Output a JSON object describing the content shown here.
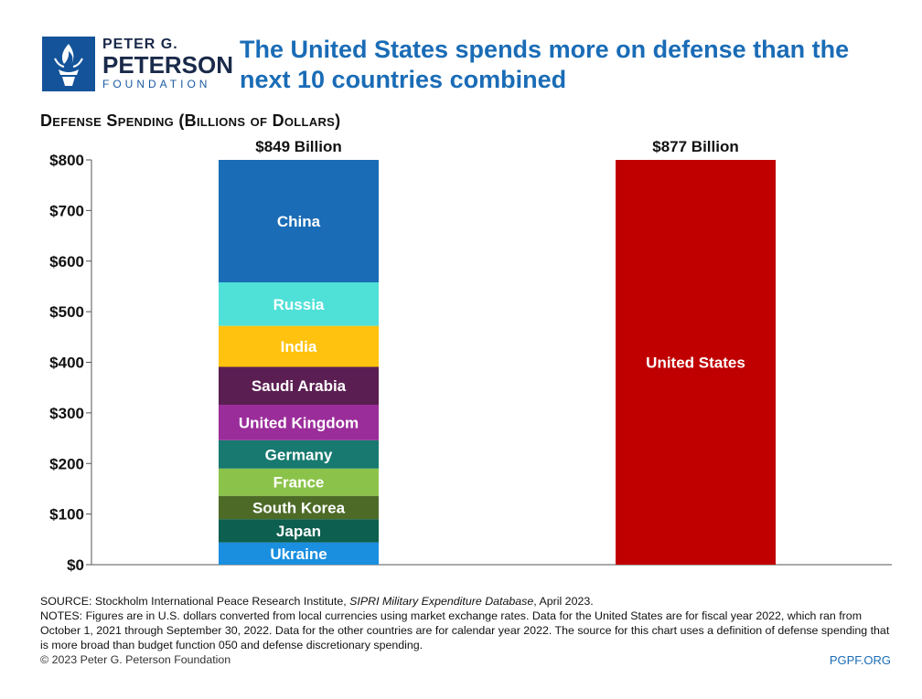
{
  "logo": {
    "line1": "PETER G.",
    "line2": "PETERSON",
    "line3": "FOUNDATION",
    "color": "#14539a"
  },
  "title": "The United States spends more on defense than the next 10 countries combined",
  "chart_data": {
    "type": "bar",
    "title": "Defense Spending (Billions of Dollars)",
    "ylim": [
      0,
      800
    ],
    "yticks": [
      "$0",
      "$100",
      "$200",
      "$300",
      "$400",
      "$500",
      "$600",
      "$700",
      "$800"
    ],
    "grid": false,
    "bars": [
      {
        "label": "$849 Billion",
        "stacked": true,
        "segments": [
          {
            "name": "Ukraine",
            "value": 44,
            "color": "#1a8fe0"
          },
          {
            "name": "Japan",
            "value": 46,
            "color": "#0d5f4f"
          },
          {
            "name": "South Korea",
            "value": 46,
            "color": "#4d6b27"
          },
          {
            "name": "France",
            "value": 54,
            "color": "#8bc34a"
          },
          {
            "name": "Germany",
            "value": 56,
            "color": "#17796f"
          },
          {
            "name": "United Kingdom",
            "value": 70,
            "color": "#9b2d9b"
          },
          {
            "name": "Saudi Arabia",
            "value": 75,
            "color": "#5b1e52"
          },
          {
            "name": "India",
            "value": 81,
            "color": "#ffc20e"
          },
          {
            "name": "Russia",
            "value": 86,
            "color": "#4fe0d8"
          },
          {
            "name": "China",
            "value": 292,
            "color": "#1a6cb6"
          }
        ]
      },
      {
        "label": "$877 Billion",
        "stacked": false,
        "segments": [
          {
            "name": "United States",
            "value": 877,
            "color": "#c00000"
          }
        ]
      }
    ]
  },
  "footer": {
    "source_prefix": "SOURCE: Stockholm International Peace Research Institute, ",
    "source_italic": "SIPRI Military Expenditure Database",
    "source_suffix": ", April 2023.",
    "notes": "NOTES: Figures are in U.S. dollars converted from local currencies using market exchange rates. Data for the United States are for fiscal year 2022, which ran from October 1, 2021 through September 30, 2022. Data for the other countries are for calendar year 2022. The source for this chart uses a definition of defense spending that is more broad than budget function 050 and defense discretionary spending.",
    "copyright": "© 2023 Peter G. Peterson Foundation",
    "site": "PGPF.ORG"
  }
}
